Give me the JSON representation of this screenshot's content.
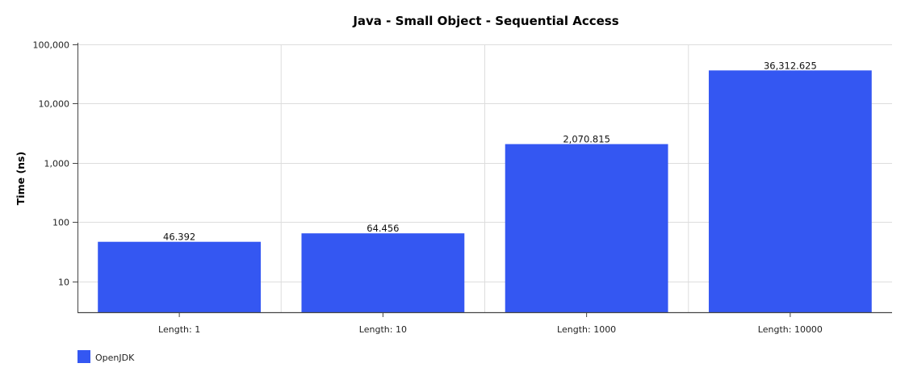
{
  "chart_data": {
    "type": "bar",
    "title": "Java - Small Object - Sequential Access",
    "xlabel": "",
    "ylabel": "Time (ns)",
    "yscale": "log",
    "ylim": [
      3,
      100000
    ],
    "yticks": [
      10,
      100,
      1000,
      10000,
      100000
    ],
    "ytick_labels": [
      "10",
      "100",
      "1,000",
      "10,000",
      "100,000"
    ],
    "grid": true,
    "legend_position": "bottom-left",
    "categories": [
      "Length: 1",
      "Length: 10",
      "Length: 1000",
      "Length: 10000"
    ],
    "series": [
      {
        "name": "OpenJDK",
        "color": "#3457f2",
        "values": [
          46.392,
          64.456,
          2070.815,
          36312.625
        ],
        "labels": [
          "46.392",
          "64.456",
          "2,070.815",
          "36,312.625"
        ]
      }
    ]
  }
}
